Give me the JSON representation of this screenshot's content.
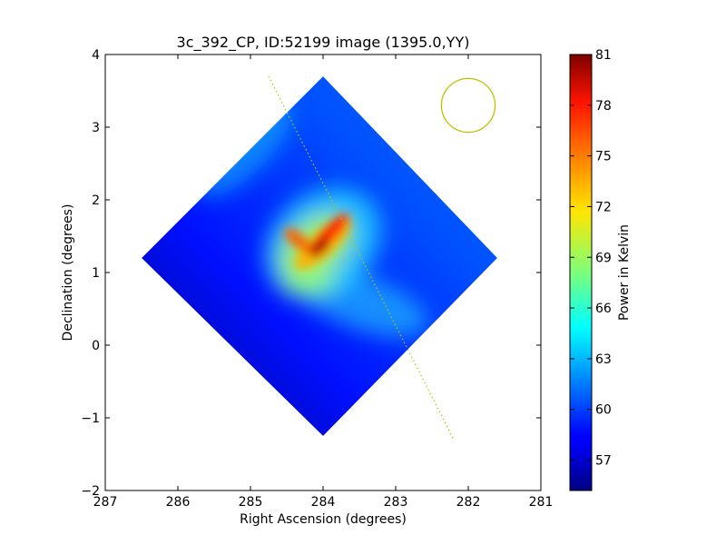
{
  "chart_data": {
    "type": "heatmap",
    "title": "3c_392_CP, ID:52199 image (1395.0,YY)",
    "xlabel": "Right Ascension (degrees)",
    "ylabel": "Declination (degrees)",
    "xlim": [
      287,
      281
    ],
    "ylim": [
      -2,
      4
    ],
    "x_ticks": [
      287,
      286,
      285,
      284,
      283,
      282,
      281
    ],
    "x_tick_labels": [
      "287",
      "286",
      "285",
      "284",
      "283",
      "282",
      "281"
    ],
    "y_ticks": [
      -2,
      -1,
      0,
      1,
      2,
      3,
      4
    ],
    "y_tick_labels": [
      "−2",
      "−1",
      "0",
      "1",
      "2",
      "3",
      "4"
    ],
    "colorbar": {
      "label": "Power in Kelvin",
      "range": [
        55.2,
        81
      ],
      "ticks": [
        57,
        60,
        63,
        66,
        69,
        72,
        75,
        78,
        81
      ],
      "tick_labels": [
        "57",
        "60",
        "63",
        "66",
        "69",
        "72",
        "75",
        "78",
        "81"
      ],
      "colormap": "jet"
    },
    "image_footprint_corners_deg": [
      [
        284.0,
        3.7
      ],
      [
        281.6,
        1.2
      ],
      [
        284.0,
        -1.25
      ],
      [
        286.5,
        1.2
      ]
    ],
    "peak": {
      "ra": 283.95,
      "dec": 1.35,
      "value": 81
    },
    "background_level_range": [
      55.2,
      62
    ],
    "scan_line": {
      "points": [
        [
          284.75,
          3.7
        ],
        [
          282.2,
          -1.3
        ]
      ],
      "color": "#bfbf00",
      "style": "dotted"
    },
    "beam_circle": {
      "center": [
        282.0,
        3.3
      ],
      "radius_deg": 0.37,
      "color": "#bfbf00"
    },
    "grid": false,
    "legend": "none"
  }
}
